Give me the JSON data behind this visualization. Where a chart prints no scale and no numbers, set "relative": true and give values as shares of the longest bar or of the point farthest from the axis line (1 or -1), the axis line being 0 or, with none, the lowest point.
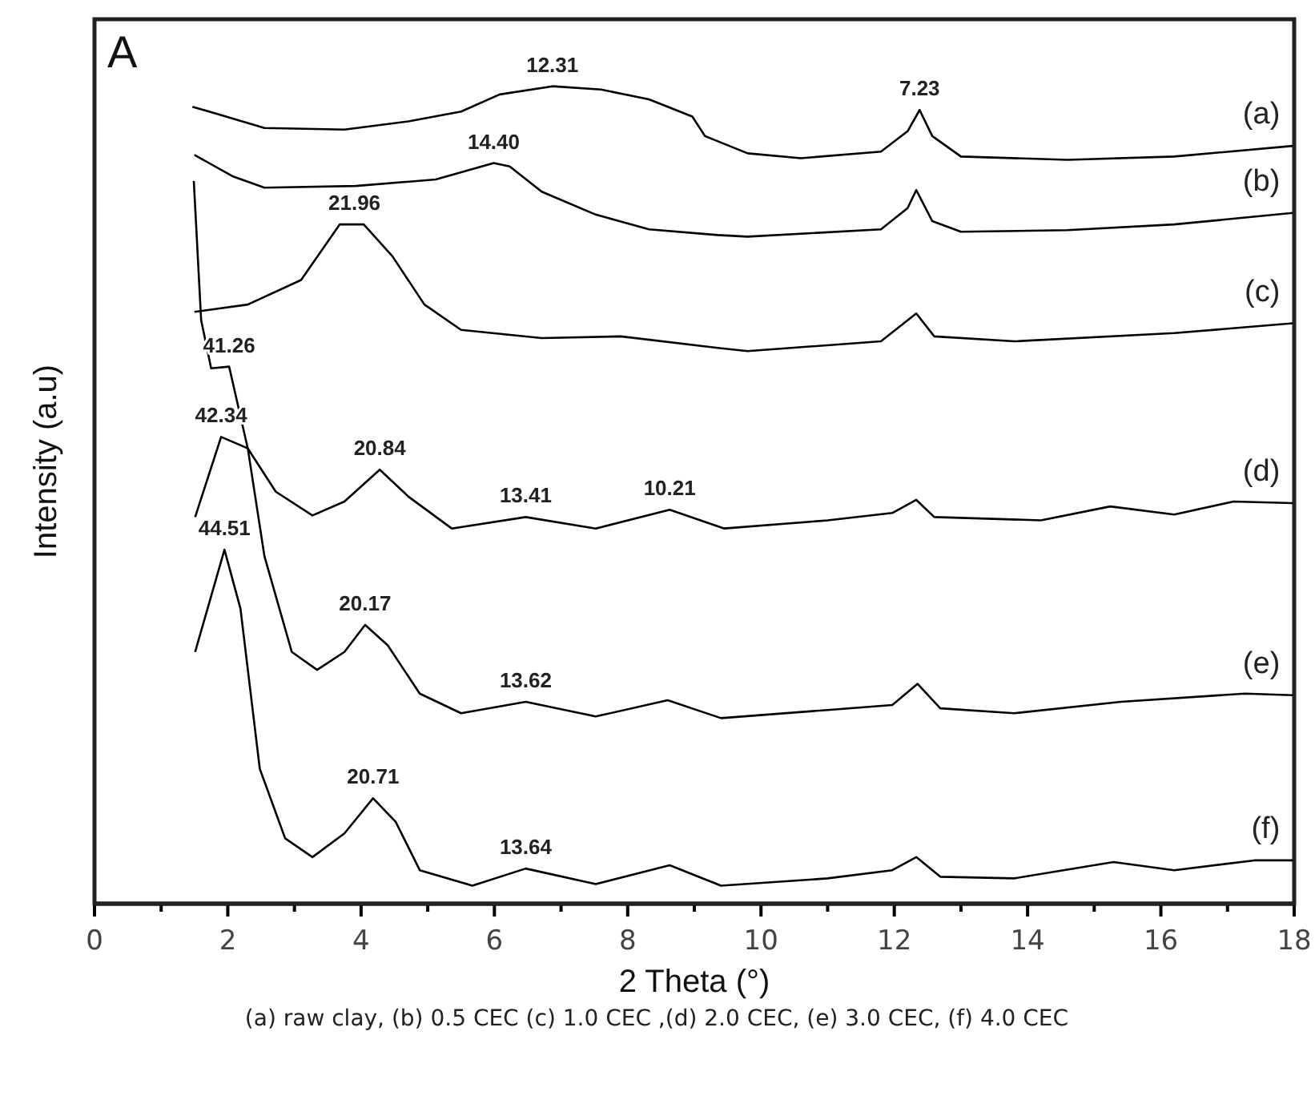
{
  "chart_data": {
    "type": "line",
    "title": "A",
    "xlabel": "2 Theta (°)",
    "ylabel": "Intensity (a.u)",
    "relative": true,
    "xlim": [
      0,
      18
    ],
    "xticks": [
      0,
      {
        "value": 1,
        "label": null
      },
      2,
      {
        "value": 3,
        "label": null
      },
      4,
      {
        "value": 5,
        "label": null
      },
      6,
      {
        "value": 7,
        "label": null
      },
      8,
      {
        "value": 9,
        "label": null
      },
      10,
      {
        "value": 11,
        "label": null
      },
      12,
      {
        "value": 13,
        "label": null
      },
      14,
      {
        "value": 15,
        "label": null
      },
      16,
      {
        "value": 17,
        "label": null
      },
      18
    ],
    "tick_labels": "x",
    "grid": false,
    "legend": false,
    "marker": "none",
    "line_style": "solid",
    "series": [
      {
        "name": "(a)",
        "color": "#000000",
        "x": [
          1.47,
          2.55,
          3.75,
          4.71,
          5.5,
          6.08,
          6.87,
          7.6,
          8.32,
          8.97,
          9.16,
          9.8,
          10.6,
          11.8,
          12.2,
          12.38,
          12.57,
          13.0,
          14.6,
          16.2,
          17.98
        ],
        "values": [
          0.975,
          0.949,
          0.947,
          0.957,
          0.969,
          0.99,
          1,
          0.996,
          0.984,
          0.963,
          0.939,
          0.918,
          0.912,
          0.92,
          0.945,
          0.971,
          0.939,
          0.914,
          0.91,
          0.914,
          0.927
        ]
      },
      {
        "name": "(b)",
        "color": "#000000",
        "x": [
          1.5,
          2.07,
          2.55,
          3.92,
          5.12,
          5.99,
          6.23,
          6.71,
          7.52,
          8.32,
          9.35,
          9.8,
          11.8,
          12.2,
          12.33,
          12.57,
          13.0,
          14.6,
          16.2,
          17.98
        ],
        "values": [
          0.916,
          0.89,
          0.876,
          0.878,
          0.886,
          0.906,
          0.902,
          0.871,
          0.843,
          0.825,
          0.818,
          0.816,
          0.825,
          0.851,
          0.873,
          0.835,
          0.822,
          0.824,
          0.831,
          0.845
        ]
      },
      {
        "name": "(c)",
        "color": "#000000",
        "x": [
          1.5,
          2.3,
          3.1,
          3.68,
          4.04,
          4.47,
          4.95,
          5.5,
          6.71,
          7.9,
          9.35,
          9.8,
          11.8,
          12.33,
          12.6,
          13.8,
          16.2,
          17.98
        ],
        "values": [
          0.724,
          0.733,
          0.763,
          0.831,
          0.831,
          0.792,
          0.733,
          0.702,
          0.692,
          0.694,
          0.68,
          0.676,
          0.688,
          0.722,
          0.694,
          0.688,
          0.698,
          0.71
        ]
      },
      {
        "name": "(d)",
        "color": "#000000",
        "x": [
          1.49,
          1.6,
          1.75,
          2.02,
          2.3,
          2.72,
          3.27,
          3.75,
          4.28,
          4.71,
          5.36,
          6.47,
          7.52,
          8.63,
          9.45,
          11.0,
          11.97,
          12.33,
          12.6,
          14.2,
          15.24,
          16.2,
          17.09,
          17.98
        ],
        "values": [
          0.884,
          0.714,
          0.655,
          0.657,
          0.557,
          0.504,
          0.475,
          0.492,
          0.531,
          0.498,
          0.459,
          0.473,
          0.459,
          0.482,
          0.459,
          0.469,
          0.478,
          0.494,
          0.473,
          0.469,
          0.486,
          0.476,
          0.492,
          0.49
        ]
      },
      {
        "name": "(e)",
        "color": "#000000",
        "x": [
          1.51,
          1.9,
          2.3,
          2.55,
          2.96,
          3.34,
          3.75,
          4.06,
          4.4,
          4.88,
          5.5,
          6.47,
          7.52,
          8.6,
          9.4,
          11.0,
          11.97,
          12.35,
          12.69,
          13.8,
          15.4,
          17.26,
          17.98
        ],
        "values": [
          0.473,
          0.571,
          0.557,
          0.425,
          0.308,
          0.286,
          0.308,
          0.341,
          0.316,
          0.257,
          0.233,
          0.247,
          0.229,
          0.249,
          0.227,
          0.237,
          0.243,
          0.269,
          0.239,
          0.233,
          0.247,
          0.257,
          0.255
        ]
      },
      {
        "name": "(f)",
        "color": "#000000",
        "x": [
          1.51,
          1.95,
          2.19,
          2.48,
          2.86,
          3.27,
          3.75,
          4.18,
          4.52,
          4.88,
          5.67,
          6.47,
          7.52,
          8.63,
          9.4,
          11.0,
          11.97,
          12.33,
          12.69,
          13.8,
          15.29,
          16.2,
          17.4,
          17.98
        ],
        "values": [
          0.308,
          0.433,
          0.361,
          0.165,
          0.08,
          0.057,
          0.086,
          0.129,
          0.1,
          0.041,
          0.022,
          0.043,
          0.024,
          0.047,
          0.022,
          0.031,
          0.041,
          0.057,
          0.033,
          0.031,
          0.051,
          0.041,
          0.053,
          0.053
        ]
      }
    ],
    "annotations": [
      {
        "text": "12.31",
        "x": 6.87,
        "y": 1
      },
      {
        "text": "7.23",
        "x": 12.38,
        "y": 0.971
      },
      {
        "text": "14.40",
        "x": 5.99,
        "y": 0.906
      },
      {
        "text": "21.96",
        "x": 3.9,
        "y": 0.831
      },
      {
        "text": "41.26",
        "x": 2.02,
        "y": 0.657
      },
      {
        "text": "20.84",
        "x": 4.28,
        "y": 0.531
      },
      {
        "text": "13.41",
        "x": 6.47,
        "y": 0.473
      },
      {
        "text": "10.21",
        "x": 8.63,
        "y": 0.482
      },
      {
        "text": "42.34",
        "x": 1.9,
        "y": 0.571
      },
      {
        "text": "20.17",
        "x": 4.06,
        "y": 0.341
      },
      {
        "text": "13.62",
        "x": 6.47,
        "y": 0.247
      },
      {
        "text": "44.51",
        "x": 1.95,
        "y": 0.433
      },
      {
        "text": "20.71",
        "x": 4.18,
        "y": 0.129
      },
      {
        "text": "13.64",
        "x": 6.47,
        "y": 0.043
      },
      "(a) raw clay, (b) 0.5 CEC (c) 1.0 CEC ,(d) 2.0 CEC, (e) 3.0 CEC, (f) 4.0 CEC"
    ]
  }
}
